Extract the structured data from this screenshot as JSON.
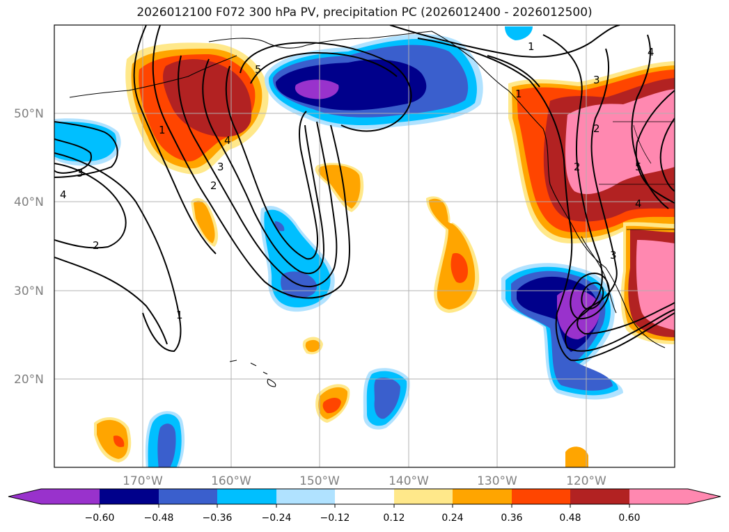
{
  "title": "2026012100 F072 300 hPa PV, precipitation PC (2026012400 - 2026012500)",
  "map": {
    "lat_labels": [
      "50°N",
      "40°N",
      "30°N",
      "20°N"
    ],
    "lon_labels": [
      "170°W",
      "160°W",
      "150°W",
      "140°W",
      "130°W",
      "120°W"
    ],
    "contour_labels": [
      "1",
      "2",
      "3",
      "4",
      "5",
      "1",
      "2",
      "4",
      "1",
      "3",
      "4",
      "2",
      "1",
      "3",
      "5",
      "2",
      "4",
      "3"
    ]
  },
  "colorbar": {
    "ticks": [
      "−0.60",
      "−0.48",
      "−0.36",
      "−0.24",
      "−0.12",
      "0.12",
      "0.24",
      "0.36",
      "0.48",
      "0.60"
    ],
    "colors": {
      "neg_extend": "#9932CC",
      "neg_060": "#00008B",
      "neg_048": "#3A5FCD",
      "neg_036": "#00BFFF",
      "neg_024": "#B0E2FF",
      "neutral": "#FFFFFF",
      "pos_012": "#FFE88A",
      "pos_024": "#FFA500",
      "pos_036": "#FF4500",
      "pos_048": "#B22222",
      "pos_extend": "#FF88B0"
    }
  }
}
